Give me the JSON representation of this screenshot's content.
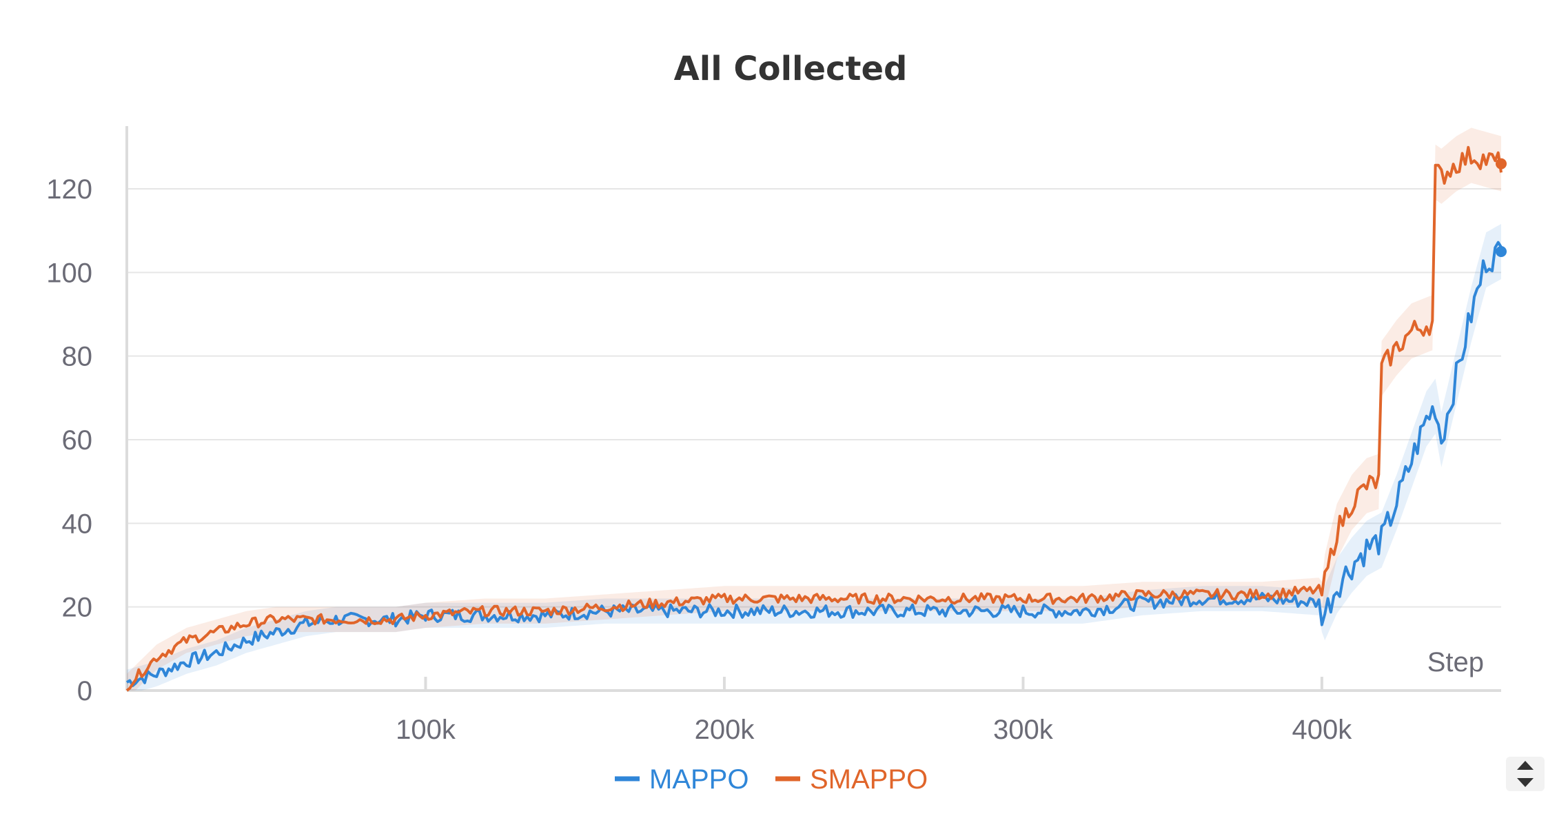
{
  "chart_data": {
    "type": "line",
    "title": "All Collected",
    "xlabel": "Step",
    "ylabel": "",
    "xlim": [
      0,
      460000
    ],
    "ylim": [
      0,
      135
    ],
    "x_ticks": [
      100000,
      200000,
      300000,
      400000
    ],
    "x_tick_labels": [
      "100k",
      "200k",
      "300k",
      "400k"
    ],
    "y_ticks": [
      0,
      20,
      40,
      60,
      80,
      100,
      120
    ],
    "y_tick_labels": [
      "0",
      "20",
      "40",
      "60",
      "80",
      "100",
      "120"
    ],
    "grid": true,
    "legend_position": "bottom-center",
    "series": [
      {
        "name": "MAPPO",
        "color": "#2f86d8",
        "x": [
          0,
          10000,
          20000,
          30000,
          40000,
          50000,
          60000,
          70000,
          80000,
          90000,
          100000,
          120000,
          140000,
          160000,
          180000,
          200000,
          220000,
          240000,
          260000,
          280000,
          300000,
          320000,
          340000,
          360000,
          380000,
          399000,
          400000,
          405000,
          410000,
          415000,
          420000,
          425000,
          430000,
          435000,
          438000,
          440000,
          445000,
          450000,
          455000,
          460000
        ],
        "y": [
          2,
          4,
          7,
          9,
          12,
          14,
          16,
          17,
          17,
          17,
          18,
          18,
          18,
          19,
          19,
          19,
          19,
          19,
          19,
          19,
          19,
          19,
          21,
          22,
          22,
          21,
          17,
          25,
          30,
          34,
          36,
          45,
          55,
          65,
          68,
          60,
          75,
          90,
          103,
          105
        ]
      },
      {
        "name": "SMAPPO",
        "color": "#e0652a",
        "x": [
          0,
          10000,
          20000,
          30000,
          40000,
          50000,
          60000,
          70000,
          80000,
          90000,
          100000,
          120000,
          140000,
          160000,
          180000,
          200000,
          220000,
          240000,
          260000,
          280000,
          300000,
          320000,
          340000,
          360000,
          380000,
          399000,
          400000,
          405000,
          410000,
          415000,
          419000,
          420000,
          425000,
          430000,
          437000,
          438000,
          440000,
          445000,
          450000,
          455000,
          460000
        ],
        "y": [
          1,
          8,
          12,
          14,
          16,
          17,
          17,
          17,
          17,
          17,
          18,
          19,
          19,
          20,
          21,
          22,
          22,
          22,
          22,
          22,
          22,
          22,
          23,
          23,
          23,
          24,
          23,
          38,
          45,
          49,
          50,
          77,
          82,
          86,
          88,
          124,
          123,
          126,
          128,
          127,
          126
        ]
      }
    ]
  }
}
